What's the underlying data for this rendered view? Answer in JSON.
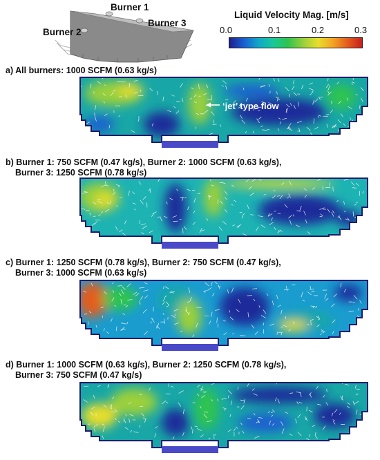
{
  "furnace_inset": {
    "labels": [
      "Burner 1",
      "Burner 2",
      "Burner 3"
    ]
  },
  "colorbar": {
    "title": "Liquid Velocity Mag. [m/s]",
    "ticks": [
      "0.0",
      "0.1",
      "0.2",
      "0.3"
    ],
    "colors": [
      "#20208c",
      "#1a5fd0",
      "#11a8c8",
      "#19c79a",
      "#2ec44f",
      "#9bd03b",
      "#e8de2c",
      "#f3a325",
      "#e45d1f",
      "#c71e1e"
    ]
  },
  "panels": [
    {
      "caption_lines": [
        "a) All burners: 1000 SCFM (0.63 kg/s)"
      ],
      "annotation": "‘jet’ type flow"
    },
    {
      "caption_lines": [
        "b) Burner 1: 750 SCFM (0.47 kg/s), Burner 2: 1000 SCFM (0.63 kg/s),",
        "Burner 3: 1250 SCFM (0.78 kg/s)"
      ]
    },
    {
      "caption_lines": [
        "c) Burner 1: 1250 SCFM (0.78 kg/s), Burner 2: 750 SCFM (0.47 kg/s),",
        "Burner 3: 1000 SCFM (0.63 kg/s)"
      ]
    },
    {
      "caption_lines": [
        "d) Burner 1: 1000 SCFM (0.63 kg/s), Burner 2: 1250 SCFM (0.78 kg/s),",
        "Burner 3: 750 SCFM (0.47 kg/s)"
      ]
    }
  ]
}
